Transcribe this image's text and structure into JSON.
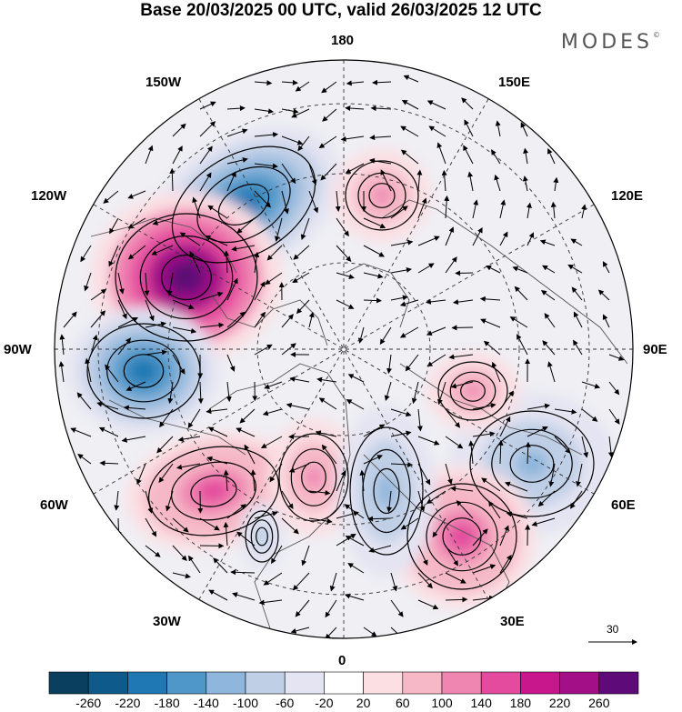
{
  "title": "Base 20/03/2025 00 UTC, valid 26/03/2025 12 UTC",
  "brand": "MODES",
  "brand_mark": "©",
  "longitude_labels": {
    "n180": "180",
    "w150": "150W",
    "e150": "150E",
    "w120": "120W",
    "e120": "120E",
    "w90": "90W",
    "e90": "90E",
    "w60": "60W",
    "e60": "60E",
    "w30": "30W",
    "e30": "30E",
    "s0": "0"
  },
  "reference_vector_label": "30",
  "colorbar": {
    "colors": [
      "#0b3f5f",
      "#0e5a8a",
      "#1f78b4",
      "#4f97c8",
      "#8fb6dc",
      "#bfcfe6",
      "#e4e4f2",
      "#ffffff",
      "#fbdfe3",
      "#f6b8c6",
      "#ef86b2",
      "#e44b9e",
      "#c8178c",
      "#a20f86",
      "#5e0a78"
    ],
    "tick_labels": [
      "-260",
      "-220",
      "-180",
      "-140",
      "-100",
      "-60",
      "-20",
      "20",
      "60",
      "100",
      "140",
      "180",
      "220",
      "260"
    ]
  },
  "anomaly_centers": [
    {
      "sign": "negative",
      "magnitude": 180
    },
    {
      "sign": "positive",
      "magnitude": 260
    },
    {
      "sign": "negative",
      "magnitude": 200
    },
    {
      "sign": "positive",
      "magnitude": 140
    },
    {
      "sign": "positive",
      "magnitude": 120
    },
    {
      "sign": "negative",
      "magnitude": 100
    },
    {
      "sign": "positive",
      "magnitude": 160
    },
    {
      "sign": "negative",
      "magnitude": 120
    },
    {
      "sign": "positive",
      "magnitude": 100
    },
    {
      "sign": "positive",
      "magnitude": 100
    },
    {
      "sign": "negative",
      "magnitude": 80
    }
  ]
}
